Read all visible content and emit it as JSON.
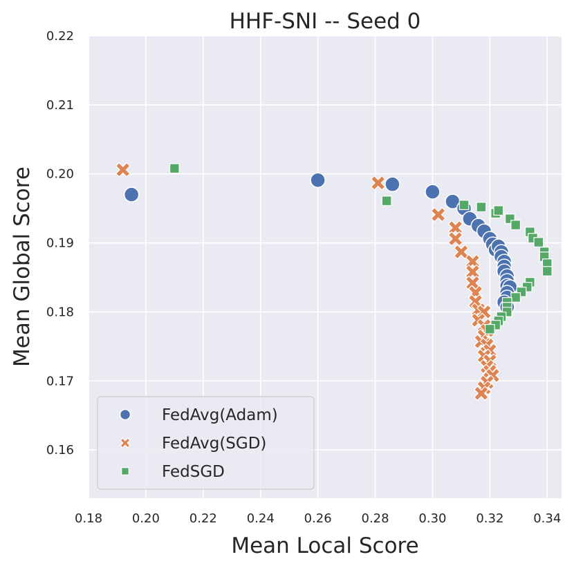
{
  "chart_data": {
    "type": "scatter",
    "title": "HHF-SNI -- Seed 0",
    "xlabel": "Mean Local Score",
    "ylabel": "Mean Global Score",
    "xlim": [
      0.18,
      0.345
    ],
    "ylim": [
      0.153,
      0.22
    ],
    "xticks": [
      "0.18",
      "0.20",
      "0.22",
      "0.24",
      "0.26",
      "0.28",
      "0.30",
      "0.32",
      "0.34"
    ],
    "yticks": [
      "0.16",
      "0.17",
      "0.18",
      "0.19",
      "0.20",
      "0.21",
      "0.22"
    ],
    "grid": true,
    "legend_position": "lower-left",
    "colors": {
      "background": "#eaeaf2",
      "grid": "#ffffff"
    },
    "series": [
      {
        "name": "FedAvg(Adam)",
        "marker": "circle",
        "color": "#4c72b0",
        "points": [
          [
            0.195,
            0.197
          ],
          [
            0.26,
            0.1991
          ],
          [
            0.286,
            0.1985
          ],
          [
            0.3,
            0.1974
          ],
          [
            0.307,
            0.196
          ],
          [
            0.311,
            0.195
          ],
          [
            0.313,
            0.1935
          ],
          [
            0.316,
            0.1925
          ],
          [
            0.318,
            0.1917
          ],
          [
            0.32,
            0.1906
          ],
          [
            0.321,
            0.1898
          ],
          [
            0.322,
            0.189
          ],
          [
            0.323,
            0.1895
          ],
          [
            0.324,
            0.1887
          ],
          [
            0.324,
            0.188
          ],
          [
            0.325,
            0.1873
          ],
          [
            0.325,
            0.1866
          ],
          [
            0.325,
            0.1859
          ],
          [
            0.326,
            0.1852
          ],
          [
            0.326,
            0.1845
          ],
          [
            0.326,
            0.1838
          ],
          [
            0.327,
            0.1836
          ],
          [
            0.326,
            0.1828
          ],
          [
            0.326,
            0.1821
          ],
          [
            0.325,
            0.1814
          ],
          [
            0.326,
            0.1807
          ]
        ]
      },
      {
        "name": "FedAvg(SGD)",
        "marker": "x",
        "color": "#dd8452",
        "points": [
          [
            0.192,
            0.2006
          ],
          [
            0.281,
            0.1987
          ],
          [
            0.302,
            0.1941
          ],
          [
            0.308,
            0.1922
          ],
          [
            0.308,
            0.1906
          ],
          [
            0.31,
            0.1887
          ],
          [
            0.314,
            0.1873
          ],
          [
            0.314,
            0.1858
          ],
          [
            0.314,
            0.1842
          ],
          [
            0.315,
            0.1828
          ],
          [
            0.315,
            0.1815
          ],
          [
            0.316,
            0.1803
          ],
          [
            0.318,
            0.18
          ],
          [
            0.316,
            0.1788
          ],
          [
            0.318,
            0.178
          ],
          [
            0.319,
            0.1773
          ],
          [
            0.318,
            0.1765
          ],
          [
            0.317,
            0.1757
          ],
          [
            0.319,
            0.1752
          ],
          [
            0.32,
            0.1744
          ],
          [
            0.318,
            0.1736
          ],
          [
            0.32,
            0.1729
          ],
          [
            0.319,
            0.1721
          ],
          [
            0.32,
            0.1714
          ],
          [
            0.321,
            0.1708
          ],
          [
            0.319,
            0.1698
          ],
          [
            0.318,
            0.169
          ],
          [
            0.317,
            0.1682
          ]
        ]
      },
      {
        "name": "FedSGD",
        "marker": "square",
        "color": "#55a868",
        "points": [
          [
            0.21,
            0.2008
          ],
          [
            0.284,
            0.1961
          ],
          [
            0.311,
            0.1955
          ],
          [
            0.317,
            0.1952
          ],
          [
            0.322,
            0.1943
          ],
          [
            0.323,
            0.1947
          ],
          [
            0.327,
            0.1935
          ],
          [
            0.329,
            0.1926
          ],
          [
            0.334,
            0.1916
          ],
          [
            0.335,
            0.1907
          ],
          [
            0.337,
            0.1901
          ],
          [
            0.339,
            0.1887
          ],
          [
            0.339,
            0.188
          ],
          [
            0.34,
            0.187
          ],
          [
            0.34,
            0.1859
          ],
          [
            0.334,
            0.1843
          ],
          [
            0.333,
            0.1836
          ],
          [
            0.331,
            0.1829
          ],
          [
            0.329,
            0.1821
          ],
          [
            0.326,
            0.1814
          ],
          [
            0.326,
            0.1807
          ],
          [
            0.326,
            0.18
          ],
          [
            0.324,
            0.1793
          ],
          [
            0.323,
            0.1787
          ],
          [
            0.322,
            0.1781
          ],
          [
            0.32,
            0.1775
          ]
        ]
      }
    ]
  }
}
